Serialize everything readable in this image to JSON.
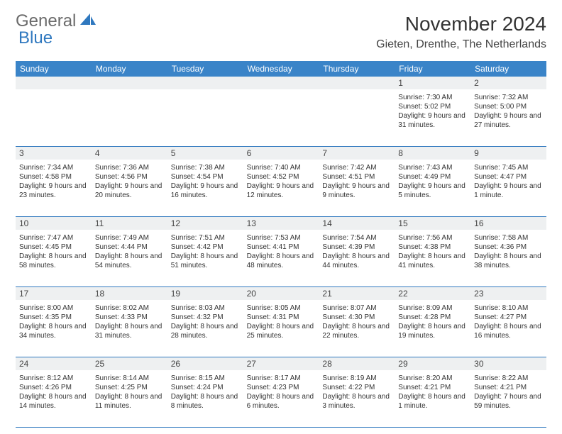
{
  "brand": {
    "word1": "General",
    "word2": "Blue"
  },
  "colors": {
    "accent": "#3a84c8",
    "rule": "#2f78bf",
    "stripe": "#eef0f1"
  },
  "title": "November 2024",
  "location": "Gieten, Drenthe, The Netherlands",
  "day_names": [
    "Sunday",
    "Monday",
    "Tuesday",
    "Wednesday",
    "Thursday",
    "Friday",
    "Saturday"
  ],
  "weeks": [
    [
      null,
      null,
      null,
      null,
      null,
      {
        "n": "1",
        "sr": "7:30 AM",
        "ss": "5:02 PM",
        "dl": "9 hours and 31 minutes."
      },
      {
        "n": "2",
        "sr": "7:32 AM",
        "ss": "5:00 PM",
        "dl": "9 hours and 27 minutes."
      }
    ],
    [
      {
        "n": "3",
        "sr": "7:34 AM",
        "ss": "4:58 PM",
        "dl": "9 hours and 23 minutes."
      },
      {
        "n": "4",
        "sr": "7:36 AM",
        "ss": "4:56 PM",
        "dl": "9 hours and 20 minutes."
      },
      {
        "n": "5",
        "sr": "7:38 AM",
        "ss": "4:54 PM",
        "dl": "9 hours and 16 minutes."
      },
      {
        "n": "6",
        "sr": "7:40 AM",
        "ss": "4:52 PM",
        "dl": "9 hours and 12 minutes."
      },
      {
        "n": "7",
        "sr": "7:42 AM",
        "ss": "4:51 PM",
        "dl": "9 hours and 9 minutes."
      },
      {
        "n": "8",
        "sr": "7:43 AM",
        "ss": "4:49 PM",
        "dl": "9 hours and 5 minutes."
      },
      {
        "n": "9",
        "sr": "7:45 AM",
        "ss": "4:47 PM",
        "dl": "9 hours and 1 minute."
      }
    ],
    [
      {
        "n": "10",
        "sr": "7:47 AM",
        "ss": "4:45 PM",
        "dl": "8 hours and 58 minutes."
      },
      {
        "n": "11",
        "sr": "7:49 AM",
        "ss": "4:44 PM",
        "dl": "8 hours and 54 minutes."
      },
      {
        "n": "12",
        "sr": "7:51 AM",
        "ss": "4:42 PM",
        "dl": "8 hours and 51 minutes."
      },
      {
        "n": "13",
        "sr": "7:53 AM",
        "ss": "4:41 PM",
        "dl": "8 hours and 48 minutes."
      },
      {
        "n": "14",
        "sr": "7:54 AM",
        "ss": "4:39 PM",
        "dl": "8 hours and 44 minutes."
      },
      {
        "n": "15",
        "sr": "7:56 AM",
        "ss": "4:38 PM",
        "dl": "8 hours and 41 minutes."
      },
      {
        "n": "16",
        "sr": "7:58 AM",
        "ss": "4:36 PM",
        "dl": "8 hours and 38 minutes."
      }
    ],
    [
      {
        "n": "17",
        "sr": "8:00 AM",
        "ss": "4:35 PM",
        "dl": "8 hours and 34 minutes."
      },
      {
        "n": "18",
        "sr": "8:02 AM",
        "ss": "4:33 PM",
        "dl": "8 hours and 31 minutes."
      },
      {
        "n": "19",
        "sr": "8:03 AM",
        "ss": "4:32 PM",
        "dl": "8 hours and 28 minutes."
      },
      {
        "n": "20",
        "sr": "8:05 AM",
        "ss": "4:31 PM",
        "dl": "8 hours and 25 minutes."
      },
      {
        "n": "21",
        "sr": "8:07 AM",
        "ss": "4:30 PM",
        "dl": "8 hours and 22 minutes."
      },
      {
        "n": "22",
        "sr": "8:09 AM",
        "ss": "4:28 PM",
        "dl": "8 hours and 19 minutes."
      },
      {
        "n": "23",
        "sr": "8:10 AM",
        "ss": "4:27 PM",
        "dl": "8 hours and 16 minutes."
      }
    ],
    [
      {
        "n": "24",
        "sr": "8:12 AM",
        "ss": "4:26 PM",
        "dl": "8 hours and 14 minutes."
      },
      {
        "n": "25",
        "sr": "8:14 AM",
        "ss": "4:25 PM",
        "dl": "8 hours and 11 minutes."
      },
      {
        "n": "26",
        "sr": "8:15 AM",
        "ss": "4:24 PM",
        "dl": "8 hours and 8 minutes."
      },
      {
        "n": "27",
        "sr": "8:17 AM",
        "ss": "4:23 PM",
        "dl": "8 hours and 6 minutes."
      },
      {
        "n": "28",
        "sr": "8:19 AM",
        "ss": "4:22 PM",
        "dl": "8 hours and 3 minutes."
      },
      {
        "n": "29",
        "sr": "8:20 AM",
        "ss": "4:21 PM",
        "dl": "8 hours and 1 minute."
      },
      {
        "n": "30",
        "sr": "8:22 AM",
        "ss": "4:21 PM",
        "dl": "7 hours and 59 minutes."
      }
    ]
  ],
  "labels": {
    "sunrise": "Sunrise:",
    "sunset": "Sunset:",
    "daylight": "Daylight:"
  }
}
